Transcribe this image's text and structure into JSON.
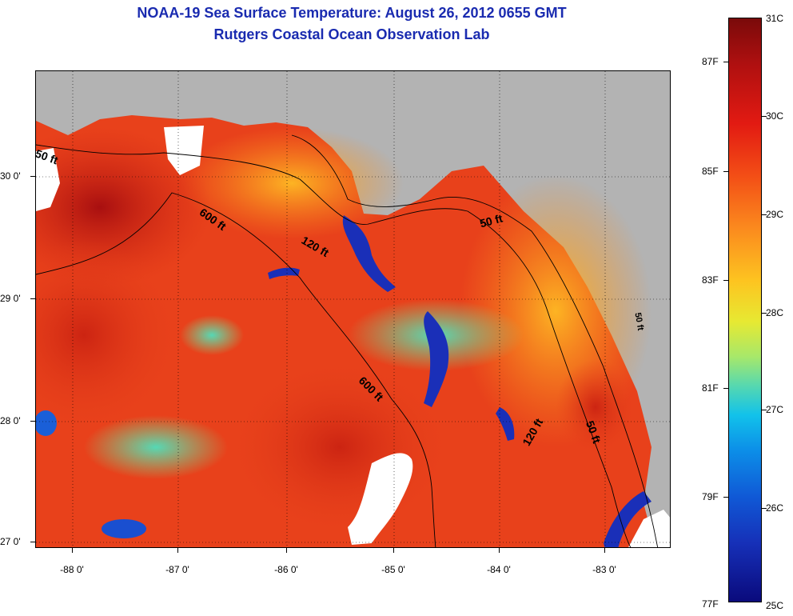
{
  "title_line1": "NOAA-19 Sea Surface Temperature:  August 26, 2012 0655 GMT",
  "title_line2": "Rutgers Coastal Ocean Observation Lab",
  "lat_labels": [
    "30 0'",
    "29 0'",
    "28 0'",
    "27 0'"
  ],
  "lon_labels": [
    "-88 0'",
    "-87 0'",
    "-86 0'",
    "-85 0'",
    "-84 0'",
    "-83 0'"
  ],
  "contour_labels": {
    "west_50": "50 ft",
    "west_600": "600 ft",
    "west_120": "120 ft",
    "south_600": "600 ft",
    "east_50": "50 ft",
    "east_120": "120 ft",
    "southeast_50": "50 ft",
    "coast_50": "50 ft"
  },
  "colorbar": {
    "celsius": [
      "31C",
      "30C",
      "29C",
      "28C",
      "27C",
      "26C",
      "25C"
    ],
    "fahrenheit": [
      "87F",
      "85F",
      "83F",
      "81F",
      "79F",
      "77F"
    ]
  },
  "colors": {
    "title": "#1a2bb0",
    "land": "#b3b3b3",
    "warm": "#e8411b",
    "cold": "#1a2fb8"
  }
}
